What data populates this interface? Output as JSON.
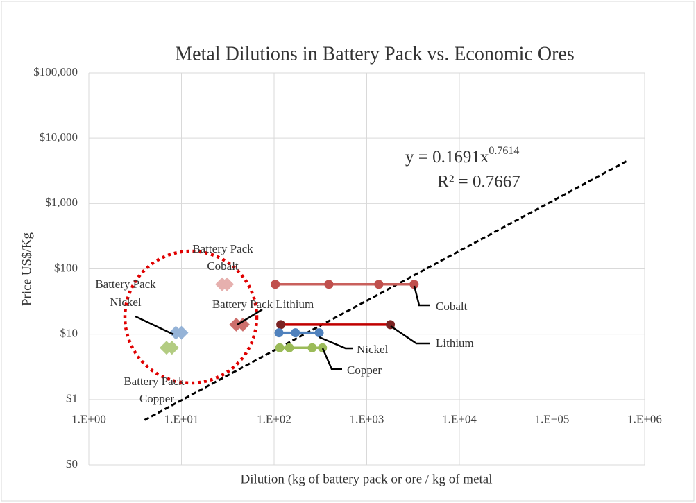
{
  "chart_data": {
    "type": "scatter",
    "title": "Metal Dilutions in Battery Pack vs. Economic Ores",
    "x_label": "Dilution  (kg of battery pack or ore / kg of metal",
    "y_label": "Price US$/Kg",
    "log_x": true,
    "log_y": true,
    "grid": true,
    "xlim": [
      1,
      1000000
    ],
    "xticks": [
      {
        "value": 1,
        "label": "1.E+00"
      },
      {
        "value": 10,
        "label": "1.E+01"
      },
      {
        "value": 100,
        "label": "1.E+02"
      },
      {
        "value": 1000,
        "label": "1.E+03"
      },
      {
        "value": 10000,
        "label": "1.E+04"
      },
      {
        "value": 100000,
        "label": "1.E+05"
      },
      {
        "value": 1000000,
        "label": "1.E+06"
      }
    ],
    "ylim": [
      0.1,
      100000
    ],
    "yticks": [
      {
        "value": 0.1,
        "label": "$0"
      },
      {
        "value": 1,
        "label": "$1"
      },
      {
        "value": 10,
        "label": "$10"
      },
      {
        "value": 100,
        "label": "$100"
      },
      {
        "value": 1000,
        "label": "$1,000"
      },
      {
        "value": 10000,
        "label": "$10,000"
      },
      {
        "value": 100000,
        "label": "$100,000"
      }
    ],
    "series": [
      {
        "label": [
          "Cobalt"
        ],
        "marker": "circle",
        "color": "#c0504d",
        "line_color": "#c9605c",
        "x": [
          103,
          390,
          1350,
          3250
        ],
        "values": [
          58,
          58,
          58,
          58
        ]
      },
      {
        "label": [
          "Lithium"
        ],
        "marker": "circle",
        "color": "#7b2323",
        "line_color": "#c00000",
        "x": [
          118,
          1800
        ],
        "values": [
          14,
          14
        ]
      },
      {
        "label": [
          "Nickel"
        ],
        "marker": "circle",
        "color": "#4f81bd",
        "line_color": "#4f81bd",
        "x": [
          113,
          170,
          307
        ],
        "values": [
          10.5,
          10.5,
          10.5
        ]
      },
      {
        "label": [
          "Copper"
        ],
        "marker": "circle",
        "color": "#9bbb59",
        "line_color": "#9bbb59",
        "x": [
          115,
          146,
          258,
          333
        ],
        "values": [
          6.2,
          6.2,
          6.2,
          6.2
        ]
      },
      {
        "label": [
          "Battery Pack",
          "Cobalt"
        ],
        "marker": "diamond",
        "color": "#e6b0ae",
        "x": [
          27.5,
          31
        ],
        "values": [
          58,
          58
        ]
      },
      {
        "label": [
          "Battery Pack Lithium"
        ],
        "marker": "diamond",
        "color": "#cd6f6c",
        "x": [
          39,
          46
        ],
        "values": [
          14,
          14
        ]
      },
      {
        "label": [
          "Battery Pack",
          "Nickel"
        ],
        "marker": "diamond",
        "color": "#95b3d7",
        "x": [
          8.7,
          10
        ],
        "values": [
          10.5,
          10.5
        ]
      },
      {
        "label": [
          "Battery Pack",
          "Copper"
        ],
        "marker": "diamond",
        "color": "#b3cc82",
        "x": [
          6.9,
          7.9
        ],
        "values": [
          6.2,
          6.2
        ]
      }
    ],
    "trendline": {
      "coefficient": 0.1691,
      "exponent": 0.7614,
      "x_range": [
        4,
        650000
      ],
      "color": "#000000"
    },
    "equation": "y = 0.1691x",
    "equation_exponent": "0.7614",
    "r_squared": "R² = 0.7667"
  }
}
